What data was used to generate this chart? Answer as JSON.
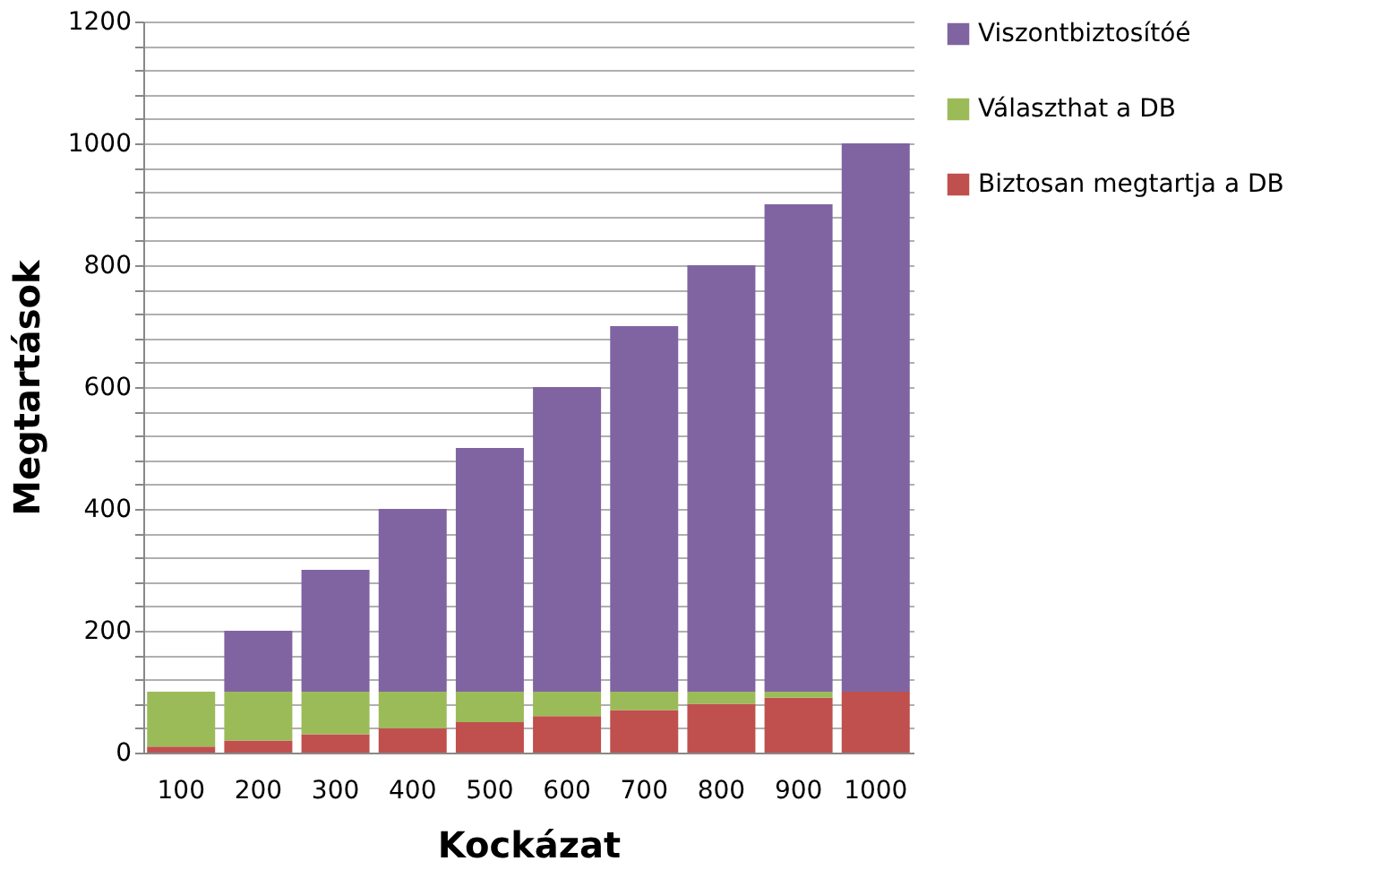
{
  "chart_data": {
    "type": "bar",
    "stacked": true,
    "xlabel": "Kockázat",
    "ylabel": "Megtartások",
    "categories": [
      "100",
      "200",
      "300",
      "400",
      "500",
      "600",
      "700",
      "800",
      "900",
      "1000"
    ],
    "series": [
      {
        "name": "Biztosan megtartja a DB",
        "color": "#c0504d",
        "values": [
          10,
          20,
          30,
          40,
          50,
          60,
          70,
          80,
          90,
          100
        ]
      },
      {
        "name": "Választhat a DB",
        "color": "#9bbb59",
        "values": [
          90,
          80,
          70,
          60,
          50,
          40,
          30,
          20,
          10,
          0
        ]
      },
      {
        "name": "Viszontbiztosítóé",
        "color": "#8064a2",
        "values": [
          0,
          100,
          200,
          300,
          400,
          500,
          600,
          700,
          800,
          900
        ]
      }
    ],
    "ylim": [
      0,
      1200
    ],
    "yticks": [
      0,
      {
        "value": 40,
        "label": null
      },
      {
        "value": 80,
        "label": null
      },
      {
        "value": 120,
        "label": null
      },
      {
        "value": 160,
        "label": null
      },
      200,
      {
        "value": 240,
        "label": null
      },
      {
        "value": 280,
        "label": null
      },
      {
        "value": 320,
        "label": null
      },
      {
        "value": 360,
        "label": null
      },
      400,
      {
        "value": 440,
        "label": null
      },
      {
        "value": 480,
        "label": null
      },
      {
        "value": 520,
        "label": null
      },
      {
        "value": 560,
        "label": null
      },
      600,
      {
        "value": 640,
        "label": null
      },
      {
        "value": 680,
        "label": null
      },
      {
        "value": 720,
        "label": null
      },
      {
        "value": 760,
        "label": null
      },
      800,
      {
        "value": 840,
        "label": null
      },
      {
        "value": 880,
        "label": null
      },
      {
        "value": 920,
        "label": null
      },
      {
        "value": 960,
        "label": null
      },
      1000,
      {
        "value": 1040,
        "label": null
      },
      {
        "value": 1080,
        "label": null
      },
      {
        "value": 1120,
        "label": null
      },
      {
        "value": 1160,
        "label": null
      },
      1200
    ],
    "grid": "y",
    "legend": "right"
  }
}
